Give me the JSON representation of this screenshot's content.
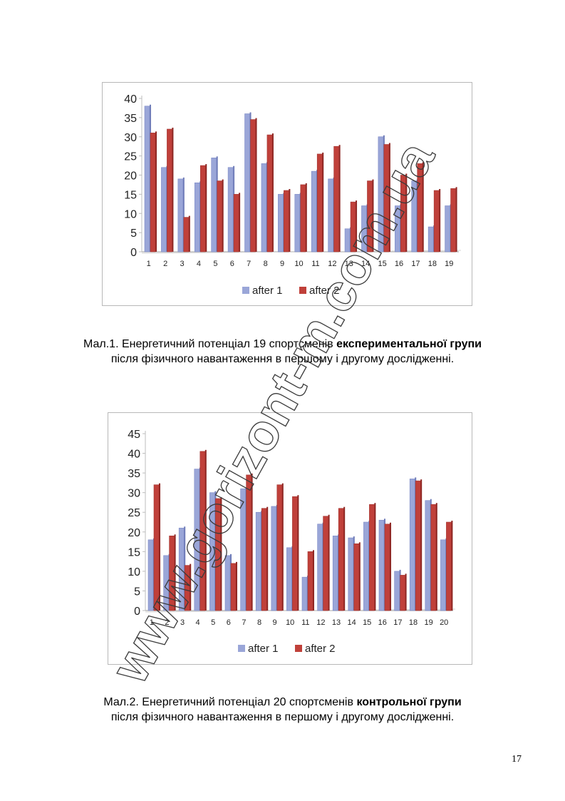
{
  "colors": {
    "after1": "#9aa6d8",
    "after2": "#c0403a",
    "axis": "#bdbdbd"
  },
  "watermark": {
    "text": "www.gorizont-m.com.ua"
  },
  "chart_data": [
    {
      "type": "bar",
      "categories": [
        "1",
        "2",
        "3",
        "4",
        "5",
        "6",
        "7",
        "8",
        "9",
        "10",
        "11",
        "12",
        "13",
        "14",
        "15",
        "16",
        "17",
        "18",
        "19"
      ],
      "series": [
        {
          "name": "after 1",
          "values": [
            38,
            22,
            19,
            18,
            24.5,
            22,
            36,
            23,
            15,
            15,
            21,
            19,
            6,
            12,
            30,
            12,
            18.5,
            6.5,
            12
          ]
        },
        {
          "name": "after 2",
          "values": [
            31,
            32,
            9,
            22.5,
            18.5,
            15,
            34.5,
            30.5,
            16,
            17.5,
            25.5,
            27.5,
            13,
            18.5,
            28,
            20,
            23,
            16,
            16.5
          ]
        }
      ],
      "yticks": [
        "0",
        "5",
        "10",
        "15",
        "20",
        "25",
        "30",
        "35",
        "40"
      ],
      "ylim": [
        0,
        40
      ],
      "legend": "bottom"
    },
    {
      "type": "bar",
      "categories": [
        "1",
        "2",
        "3",
        "4",
        "5",
        "6",
        "7",
        "8",
        "9",
        "10",
        "11",
        "12",
        "13",
        "14",
        "15",
        "16",
        "17",
        "18",
        "19",
        "20"
      ],
      "series": [
        {
          "name": "after 1",
          "values": [
            18,
            14,
            21,
            36,
            30,
            14,
            31,
            25,
            26.5,
            16,
            8.5,
            22,
            19,
            18.5,
            22.5,
            23,
            10,
            33.5,
            28,
            18
          ]
        },
        {
          "name": "after 2",
          "values": [
            32,
            19,
            11.5,
            40.5,
            28.5,
            12,
            34.5,
            26,
            32,
            29,
            15,
            24,
            26,
            17,
            27,
            22,
            9,
            33,
            27,
            22.5
          ]
        }
      ],
      "yticks": [
        "0",
        "5",
        "10",
        "15",
        "20",
        "25",
        "30",
        "35",
        "40",
        "45"
      ],
      "ylim": [
        0,
        45
      ],
      "legend": "bottom"
    }
  ],
  "captions": {
    "c1_pre": "Мал.1. Енергетичний потенціал 19 спортсменів ",
    "c1_bold": "експериментальної групи",
    "c1_post": "після фізичного навантаження в першому і другому дослідженні.",
    "c2_pre": "Мал.2. Енергетичний потенціал 20 спортсменів ",
    "c2_bold": "контрольної групи",
    "c2_post": "після фізичного навантаження в першому і другому дослідженні."
  },
  "page_number": "17"
}
